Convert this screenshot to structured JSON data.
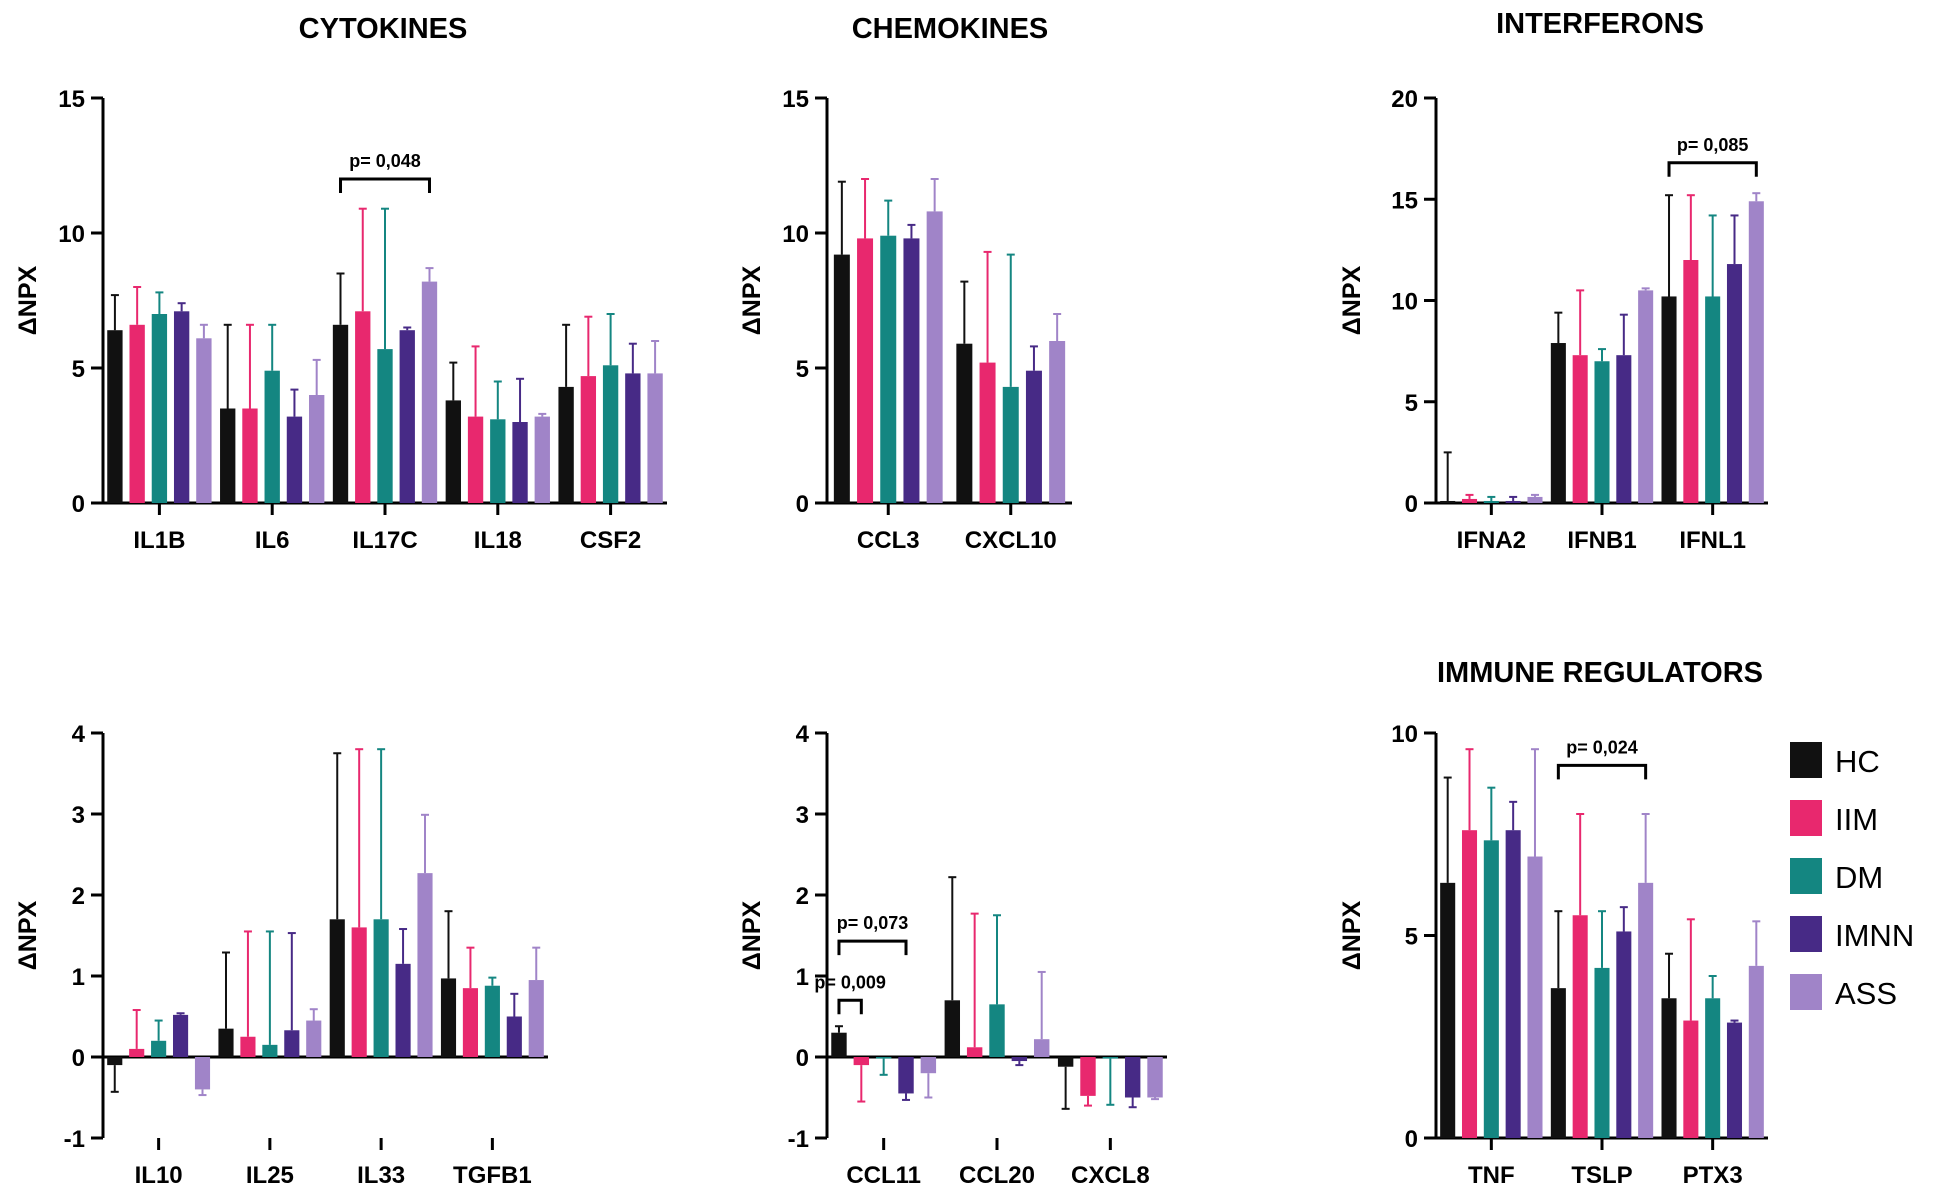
{
  "colors": {
    "HC": "#111111",
    "IIM": "#e8286e",
    "DM": "#148681",
    "IMNN": "#472a86",
    "ASS": "#a084c8"
  },
  "legend": {
    "items": [
      {
        "name": "HC",
        "color": "#111111"
      },
      {
        "name": "IIM",
        "color": "#e8286e"
      },
      {
        "name": "DM",
        "color": "#148681"
      },
      {
        "name": "IMNN",
        "color": "#472a86"
      },
      {
        "name": "ASS",
        "color": "#a084c8"
      }
    ]
  },
  "chart_data": [
    {
      "type": "bar",
      "title": "CYTOKINES",
      "ylabel": "ΔNPX",
      "ylim": [
        0,
        15
      ],
      "yticks": [
        0,
        5,
        10,
        15
      ],
      "categories": [
        "IL1B",
        "IL6",
        "IL17C",
        "IL18",
        "CSF2"
      ],
      "series": [
        {
          "name": "HC",
          "values": [
            6.4,
            3.5,
            6.6,
            3.8,
            4.3
          ],
          "errors": [
            1.3,
            3.1,
            1.9,
            1.4,
            2.3
          ]
        },
        {
          "name": "IIM",
          "values": [
            6.6,
            3.5,
            7.1,
            3.2,
            4.7
          ],
          "errors": [
            1.4,
            3.1,
            3.8,
            2.6,
            2.2
          ]
        },
        {
          "name": "DM",
          "values": [
            7.0,
            4.9,
            5.7,
            3.1,
            5.1
          ],
          "errors": [
            0.8,
            1.7,
            5.2,
            1.4,
            1.9
          ]
        },
        {
          "name": "IMNN",
          "values": [
            7.1,
            3.2,
            6.4,
            3.0,
            4.8
          ],
          "errors": [
            0.3,
            1.0,
            0.1,
            1.6,
            1.1
          ]
        },
        {
          "name": "ASS",
          "values": [
            6.1,
            4.0,
            8.2,
            3.2,
            4.8
          ],
          "errors": [
            0.5,
            1.3,
            0.5,
            0.1,
            1.2
          ]
        }
      ],
      "annotations": [
        {
          "text": "p= 0,048",
          "category": 2,
          "from": 0,
          "to": 4,
          "y": 12.0
        }
      ]
    },
    {
      "type": "bar",
      "title": "CHEMOKINES",
      "ylabel": "ΔNPX",
      "ylim": [
        0,
        15
      ],
      "yticks": [
        0,
        5,
        10,
        15
      ],
      "categories": [
        "CCL3",
        "CXCL10"
      ],
      "series": [
        {
          "name": "HC",
          "values": [
            9.2,
            5.9
          ],
          "errors": [
            2.7,
            2.3
          ]
        },
        {
          "name": "IIM",
          "values": [
            9.8,
            5.2
          ],
          "errors": [
            2.2,
            4.1
          ]
        },
        {
          "name": "DM",
          "values": [
            9.9,
            4.3
          ],
          "errors": [
            1.3,
            4.9
          ]
        },
        {
          "name": "IMNN",
          "values": [
            9.8,
            4.9
          ],
          "errors": [
            0.5,
            0.9
          ]
        },
        {
          "name": "ASS",
          "values": [
            10.8,
            6.0
          ],
          "errors": [
            1.2,
            1.0
          ]
        }
      ],
      "annotations": []
    },
    {
      "type": "bar",
      "title": "INTERFERONS",
      "ylabel": "ΔNPX",
      "ylim": [
        0,
        20
      ],
      "yticks": [
        0,
        5,
        10,
        15,
        20
      ],
      "categories": [
        "IFNA2",
        "IFNB1",
        "IFNL1"
      ],
      "series": [
        {
          "name": "HC",
          "values": [
            0.1,
            7.9,
            10.2
          ],
          "errors": [
            2.4,
            1.5,
            5.0
          ]
        },
        {
          "name": "IIM",
          "values": [
            0.2,
            7.3,
            12.0
          ],
          "errors": [
            0.2,
            3.2,
            3.2
          ]
        },
        {
          "name": "DM",
          "values": [
            0.1,
            7.0,
            10.2
          ],
          "errors": [
            0.2,
            0.6,
            4.0
          ]
        },
        {
          "name": "IMNN",
          "values": [
            0.1,
            7.3,
            11.8
          ],
          "errors": [
            0.2,
            2.0,
            2.4
          ]
        },
        {
          "name": "ASS",
          "values": [
            0.3,
            10.5,
            14.9
          ],
          "errors": [
            0.1,
            0.1,
            0.4
          ]
        }
      ],
      "annotations": [
        {
          "text": "p= 0,085",
          "category": 2,
          "from": 0,
          "to": 4,
          "y": 16.8
        }
      ]
    },
    {
      "type": "bar",
      "title": "",
      "ylabel": "ΔNPX",
      "ylim": [
        -1,
        4
      ],
      "yticks": [
        -1,
        0,
        1,
        2,
        3,
        4
      ],
      "categories": [
        "IL10",
        "IL25",
        "IL33",
        "TGFB1"
      ],
      "series": [
        {
          "name": "HC",
          "values": [
            -0.1,
            0.35,
            1.7,
            0.97
          ],
          "errors": [
            0.33,
            0.94,
            2.05,
            0.83
          ]
        },
        {
          "name": "IIM",
          "values": [
            0.1,
            0.25,
            1.6,
            0.85
          ],
          "errors": [
            0.48,
            1.3,
            2.2,
            0.5
          ]
        },
        {
          "name": "DM",
          "values": [
            0.2,
            0.15,
            1.7,
            0.88
          ],
          "errors": [
            0.25,
            1.4,
            2.1,
            0.1
          ]
        },
        {
          "name": "IMNN",
          "values": [
            0.52,
            0.33,
            1.15,
            0.5
          ],
          "errors": [
            0.02,
            1.2,
            0.43,
            0.28
          ]
        },
        {
          "name": "ASS",
          "values": [
            -0.4,
            0.45,
            2.27,
            0.95
          ],
          "errors": [
            0.07,
            0.14,
            0.72,
            0.4
          ]
        }
      ],
      "annotations": []
    },
    {
      "type": "bar",
      "title": "",
      "ylabel": "ΔNPX",
      "ylim": [
        -1,
        4
      ],
      "yticks": [
        -1,
        0,
        1,
        2,
        3,
        4
      ],
      "categories": [
        "CCL11",
        "CCL20",
        "CXCL8"
      ],
      "series": [
        {
          "name": "HC",
          "values": [
            0.3,
            0.7,
            -0.12
          ],
          "errors": [
            0.08,
            1.52,
            0.52
          ]
        },
        {
          "name": "IIM",
          "values": [
            -0.1,
            0.12,
            -0.48
          ],
          "errors": [
            0.45,
            1.65,
            0.12
          ]
        },
        {
          "name": "DM",
          "values": [
            -0.02,
            0.65,
            -0.02
          ],
          "errors": [
            0.2,
            1.1,
            0.57
          ]
        },
        {
          "name": "IMNN",
          "values": [
            -0.45,
            -0.05,
            -0.5
          ],
          "errors": [
            0.08,
            0.05,
            0.12
          ]
        },
        {
          "name": "ASS",
          "values": [
            -0.2,
            0.22,
            -0.5
          ],
          "errors": [
            0.3,
            0.83,
            0.02
          ]
        }
      ],
      "annotations": [
        {
          "text": "p= 0,009",
          "category": 0,
          "from": 0,
          "to": 1,
          "y": 0.7
        },
        {
          "text": "p= 0,073",
          "category": 0,
          "from": 0,
          "to": 3,
          "y": 1.43
        }
      ]
    },
    {
      "type": "bar",
      "title": "IMMUNE REGULATORS",
      "ylabel": "ΔNPX",
      "ylim": [
        0,
        10
      ],
      "yticks": [
        0,
        5,
        10
      ],
      "categories": [
        "TNF",
        "TSLP",
        "PTX3"
      ],
      "series": [
        {
          "name": "HC",
          "values": [
            6.3,
            3.7,
            3.45
          ],
          "errors": [
            2.6,
            1.9,
            1.1
          ]
        },
        {
          "name": "IIM",
          "values": [
            7.6,
            5.5,
            2.9
          ],
          "errors": [
            2.0,
            2.5,
            2.5
          ]
        },
        {
          "name": "DM",
          "values": [
            7.35,
            4.2,
            3.45
          ],
          "errors": [
            1.3,
            1.4,
            0.55
          ]
        },
        {
          "name": "IMNN",
          "values": [
            7.6,
            5.1,
            2.85
          ],
          "errors": [
            0.7,
            0.6,
            0.05
          ]
        },
        {
          "name": "ASS",
          "values": [
            6.95,
            6.3,
            4.25
          ],
          "errors": [
            2.65,
            1.7,
            1.1
          ]
        }
      ],
      "annotations": [
        {
          "text": "p= 0,024",
          "category": 1,
          "from": 0,
          "to": 4,
          "y": 9.2
        }
      ]
    }
  ]
}
